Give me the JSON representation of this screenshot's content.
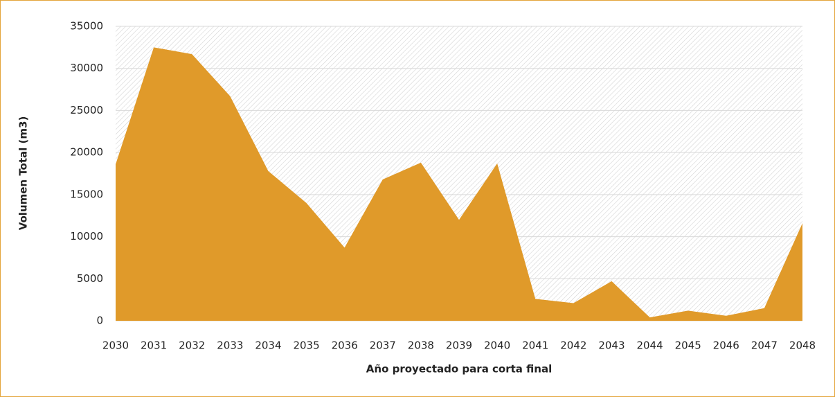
{
  "chart_data": {
    "type": "area",
    "categories": [
      "2030",
      "2031",
      "2032",
      "2033",
      "2034",
      "2035",
      "2036",
      "2037",
      "2038",
      "2039",
      "2040",
      "2041",
      "2042",
      "2043",
      "2044",
      "2045",
      "2046",
      "2047",
      "2048"
    ],
    "values": [
      18600,
      32500,
      31700,
      26700,
      17800,
      14000,
      8700,
      16800,
      18800,
      12000,
      18700,
      2600,
      2100,
      4700,
      400,
      1200,
      600,
      1500,
      11600
    ],
    "color": "#e09a2a",
    "x_label": "Año proyectado para corta final",
    "y_label": "Volumen Total (m3)",
    "ylim": [
      0,
      35000
    ],
    "yticks": [
      0,
      5000,
      10000,
      15000,
      20000,
      25000,
      30000,
      35000
    ],
    "grid": true
  }
}
